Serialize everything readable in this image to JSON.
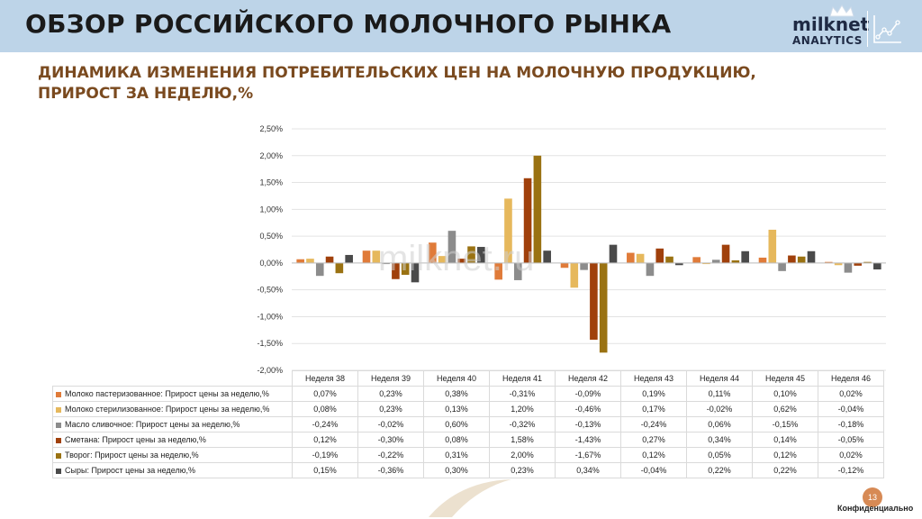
{
  "header": {
    "title": "ОБЗОР РОССИЙСКОГО МОЛОЧНОГО РЫНКА"
  },
  "logo": {
    "text": "milknet",
    "sub": "ANALYTICS",
    "icon": "line-chart-icon"
  },
  "subtitle": {
    "line1": "ДИНАМИКА ИЗМЕНЕНИЯ ПОТРЕБИТЕЛЬСКИХ ЦЕН НА МОЛОЧНУЮ ПРОДУКЦИЮ,",
    "line2": "ПРИРОСТ ЗА НЕДЕЛЮ,%"
  },
  "watermark": "milknet.ru",
  "chart_data": {
    "type": "bar",
    "categories": [
      "Неделя 38",
      "Неделя 39",
      "Неделя 40",
      "Неделя 41",
      "Неделя 42",
      "Неделя 43",
      "Неделя 44",
      "Неделя 45",
      "Неделя 46"
    ],
    "ylim": [
      -2.0,
      2.5
    ],
    "yticks": [
      2.5,
      2.0,
      1.5,
      1.0,
      0.5,
      0.0,
      -0.5,
      -1.0,
      -1.5,
      -2.0
    ],
    "ytick_labels": [
      "2,50%",
      "2,00%",
      "1,50%",
      "1,00%",
      "0,50%",
      "0,00%",
      "-0,50%",
      "-1,00%",
      "-1,50%",
      "-2,00%"
    ],
    "grid": true,
    "legend": "data-table-below",
    "series": [
      {
        "name": "Молоко пастеризованное: Прирост цены за неделю,%",
        "color": "#e07b39",
        "values": [
          0.07,
          0.23,
          0.38,
          -0.31,
          -0.09,
          0.19,
          0.11,
          0.1,
          0.02
        ],
        "labels": [
          "0,07%",
          "0,23%",
          "0,38%",
          "-0,31%",
          "-0,09%",
          "0,19%",
          "0,11%",
          "0,10%",
          "0,02%"
        ]
      },
      {
        "name": "Молоко стерилизованное: Прирост цены за неделю,%",
        "color": "#e6b85c",
        "values": [
          0.08,
          0.23,
          0.13,
          1.2,
          -0.46,
          0.17,
          -0.02,
          0.62,
          -0.04
        ],
        "labels": [
          "0,08%",
          "0,23%",
          "0,13%",
          "1,20%",
          "-0,46%",
          "0,17%",
          "-0,02%",
          "0,62%",
          "-0,04%"
        ]
      },
      {
        "name": "Масло сливочное:  Прирост цены за неделю,%",
        "color": "#8c8c8c",
        "values": [
          -0.24,
          -0.02,
          0.6,
          -0.32,
          -0.13,
          -0.24,
          0.06,
          -0.15,
          -0.18
        ],
        "labels": [
          "-0,24%",
          "-0,02%",
          "0,60%",
          "-0,32%",
          "-0,13%",
          "-0,24%",
          "0,06%",
          "-0,15%",
          "-0,18%"
        ]
      },
      {
        "name": "Сметана: Прирост цены за неделю,%",
        "color": "#a0400b",
        "values": [
          0.12,
          -0.3,
          0.08,
          1.58,
          -1.43,
          0.27,
          0.34,
          0.14,
          -0.05
        ],
        "labels": [
          "0,12%",
          "-0,30%",
          "0,08%",
          "1,58%",
          "-1,43%",
          "0,27%",
          "0,34%",
          "0,14%",
          "-0,05%"
        ]
      },
      {
        "name": "Творог: Прирост цены за неделю,%",
        "color": "#9a7212",
        "values": [
          -0.19,
          -0.22,
          0.31,
          2.0,
          -1.67,
          0.12,
          0.05,
          0.12,
          0.02
        ],
        "labels": [
          "-0,19%",
          "-0,22%",
          "0,31%",
          "2,00%",
          "-1,67%",
          "0,12%",
          "0,05%",
          "0,12%",
          "0,02%"
        ]
      },
      {
        "name": "Сыры: Прирост цены за неделю,%",
        "color": "#4a4a4a",
        "values": [
          0.15,
          -0.36,
          0.3,
          0.23,
          0.34,
          -0.04,
          0.22,
          0.22,
          -0.12
        ],
        "labels": [
          "0,15%",
          "-0,36%",
          "0,30%",
          "0,23%",
          "0,34%",
          "-0,04%",
          "0,22%",
          "0,22%",
          "-0,12%"
        ]
      }
    ]
  },
  "footer": {
    "page": "13",
    "confidential": "Конфиденциально"
  }
}
